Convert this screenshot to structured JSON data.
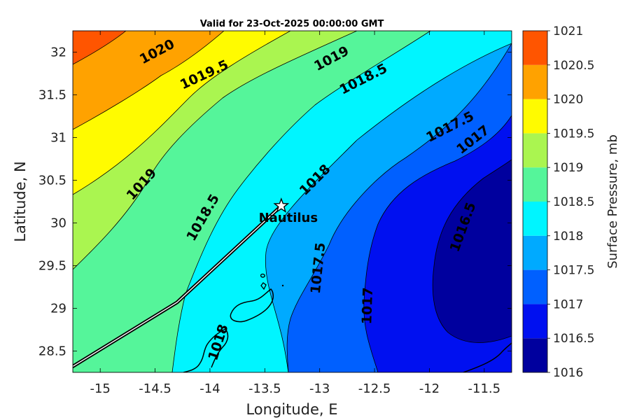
{
  "title": "Valid for 23-Oct-2025 00:00:00 GMT",
  "x_axis": {
    "label": "Longitude, E",
    "range": [
      -15.25,
      -11.25
    ],
    "ticks": [
      {
        "value": -15,
        "label": "-15"
      },
      {
        "value": -14.5,
        "label": "-14.5"
      },
      {
        "value": -14,
        "label": "-14"
      },
      {
        "value": -13.5,
        "label": "-13.5"
      },
      {
        "value": -13,
        "label": "-13"
      },
      {
        "value": -12.5,
        "label": "-12.5"
      },
      {
        "value": -12,
        "label": "-12"
      },
      {
        "value": -11.5,
        "label": "-11.5"
      }
    ]
  },
  "y_axis": {
    "label": "Latitude, N",
    "range": [
      28.25,
      32.25
    ],
    "ticks": [
      {
        "value": 28.5,
        "label": "28.5"
      },
      {
        "value": 29,
        "label": "29"
      },
      {
        "value": 29.5,
        "label": "29.5"
      },
      {
        "value": 30,
        "label": "30"
      },
      {
        "value": 30.5,
        "label": "30.5"
      },
      {
        "value": 31,
        "label": "31"
      },
      {
        "value": 31.5,
        "label": "31.5"
      },
      {
        "value": 32,
        "label": "32"
      }
    ]
  },
  "colorbar": {
    "label": "Surface Pressure, mb",
    "min": 1016,
    "max": 1021,
    "levels": [
      {
        "value": 1016,
        "label": "1016",
        "color": "#00009e"
      },
      {
        "value": 1016.5,
        "label": "1016.5",
        "color": "#0010f0"
      },
      {
        "value": 1017,
        "label": "1017",
        "color": "#0060ff"
      },
      {
        "value": 1017.5,
        "label": "1017.5",
        "color": "#00aaff"
      },
      {
        "value": 1018,
        "label": "1018",
        "color": "#00f5ff"
      },
      {
        "value": 1018.5,
        "label": "1018.5",
        "color": "#55f59a"
      },
      {
        "value": 1019,
        "label": "1019",
        "color": "#aaf550"
      },
      {
        "value": 1019.5,
        "label": "1019.5",
        "color": "#fffb00"
      },
      {
        "value": 1020,
        "label": "1020",
        "color": "#ffa200"
      },
      {
        "value": 1020.5,
        "label": "1020.5",
        "color": "#ff5500"
      },
      {
        "value": 1021,
        "label": "1021",
        "color": "#ff0000"
      }
    ]
  },
  "contour_labels": [
    {
      "text": "1020",
      "lon": -14.48,
      "lat": 32.0,
      "angle": -28
    },
    {
      "text": "1019.5",
      "lon": -14.05,
      "lat": 31.73,
      "angle": -25
    },
    {
      "text": "1019",
      "lon": -12.89,
      "lat": 31.92,
      "angle": -28
    },
    {
      "text": "1018.5",
      "lon": -12.6,
      "lat": 31.68,
      "angle": -27
    },
    {
      "text": "1017.5",
      "lon": -11.81,
      "lat": 31.12,
      "angle": -27
    },
    {
      "text": "1017",
      "lon": -11.6,
      "lat": 30.97,
      "angle": -38
    },
    {
      "text": "1019",
      "lon": -14.62,
      "lat": 30.45,
      "angle": -48
    },
    {
      "text": "1018.5",
      "lon": -14.06,
      "lat": 30.06,
      "angle": -60
    },
    {
      "text": "1018",
      "lon": -13.04,
      "lat": 30.5,
      "angle": -45
    },
    {
      "text": "1017.5",
      "lon": -13.01,
      "lat": 29.47,
      "angle": -84
    },
    {
      "text": "1017",
      "lon": -12.56,
      "lat": 29.03,
      "angle": -88
    },
    {
      "text": "1016.5",
      "lon": -11.69,
      "lat": 29.95,
      "angle": -70
    },
    {
      "text": "1018",
      "lon": -13.92,
      "lat": 28.6,
      "angle": -72
    }
  ],
  "station": {
    "name": "Nautilus",
    "lon": -13.35,
    "lat": 30.2
  },
  "track": [
    {
      "lon": -15.25,
      "lat": 28.32
    },
    {
      "lon": -14.3,
      "lat": 29.07
    },
    {
      "lon": -13.35,
      "lat": 30.2
    }
  ]
}
